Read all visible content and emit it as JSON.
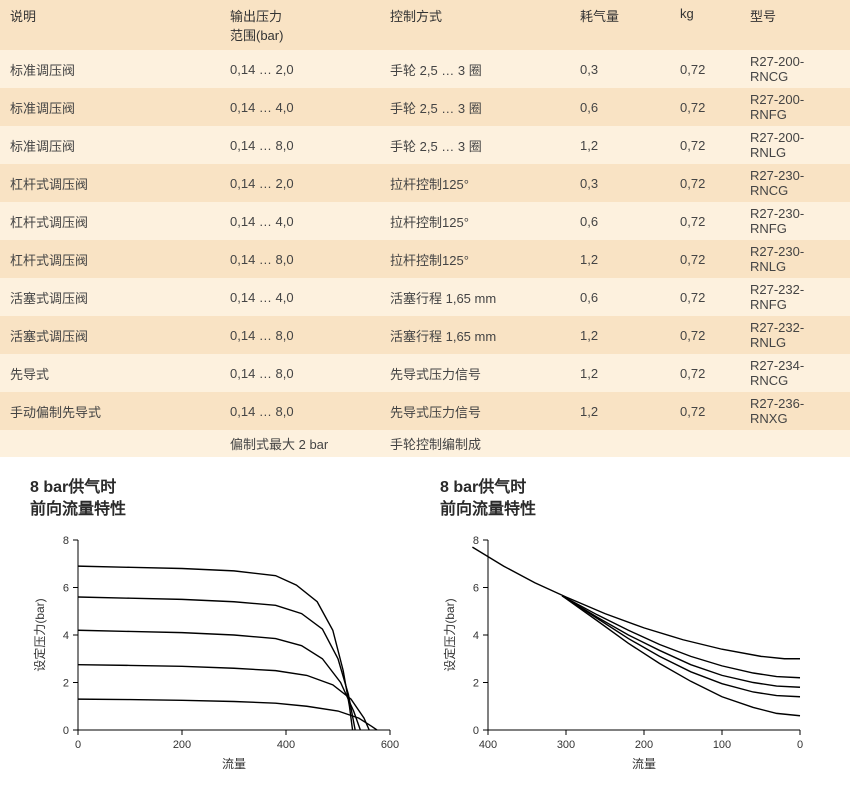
{
  "table": {
    "headers": [
      "说明",
      "输出压力\n范围(bar)",
      "控制方式",
      "耗气量",
      "kg",
      "型号"
    ],
    "rows": [
      [
        "标准调压阀",
        "0,14 … 2,0",
        "手轮 2,5 … 3 圈",
        "0,3",
        "0,72",
        "R27-200-RNCG"
      ],
      [
        "标准调压阀",
        "0,14 … 4,0",
        "手轮 2,5 … 3 圈",
        "0,6",
        "0,72",
        "R27-200-RNFG"
      ],
      [
        "标准调压阀",
        "0,14 … 8,0",
        "手轮 2,5 … 3 圈",
        "1,2",
        "0,72",
        "R27-200-RNLG"
      ],
      [
        "杠杆式调压阀",
        "0,14 … 2,0",
        "拉杆控制125°",
        "0,3",
        "0,72",
        "R27-230-RNCG"
      ],
      [
        "杠杆式调压阀",
        "0,14 … 4,0",
        "拉杆控制125°",
        "0,6",
        "0,72",
        "R27-230-RNFG"
      ],
      [
        "杠杆式调压阀",
        "0,14 … 8,0",
        "拉杆控制125°",
        "1,2",
        "0,72",
        "R27-230-RNLG"
      ],
      [
        "活塞式调压阀",
        "0,14 … 4,0",
        "活塞行程 1,65 mm",
        "0,6",
        "0,72",
        "R27-232-RNFG"
      ],
      [
        "活塞式调压阀",
        "0,14 … 8,0",
        "活塞行程 1,65 mm",
        "1,2",
        "0,72",
        "R27-232-RNLG"
      ],
      [
        "先导式",
        "0,14 … 8,0",
        "先导式压力信号",
        "1,2",
        "0,72",
        "R27-234-RNCG"
      ],
      [
        "手动偏制先导式",
        "0,14 … 8,0",
        "先导式压力信号",
        "1,2",
        "0,72",
        "R27-236-RNXG"
      ],
      [
        "",
        "偏制式最大 2 bar",
        "手轮控制编制成",
        "",
        "",
        ""
      ]
    ]
  },
  "chart_left": {
    "title_line1": "8 bar供气时",
    "title_line2": "前向流量特性",
    "type": "line",
    "xlabel": "流量",
    "ylabel": "设定压力(bar)",
    "xlim": [
      0,
      600
    ],
    "ylim": [
      0,
      8
    ],
    "xticks": [
      0,
      200,
      400,
      600
    ],
    "yticks": [
      0,
      2,
      4,
      6,
      8
    ],
    "axis_color": "#000000",
    "line_color": "#000000",
    "line_width": 1.4,
    "background_color": "#ffffff",
    "tick_fontsize": 11,
    "label_fontsize": 12,
    "series": [
      {
        "points": [
          [
            0,
            6.9
          ],
          [
            100,
            6.85
          ],
          [
            200,
            6.8
          ],
          [
            300,
            6.7
          ],
          [
            380,
            6.5
          ],
          [
            420,
            6.1
          ],
          [
            460,
            5.4
          ],
          [
            490,
            4.2
          ],
          [
            510,
            2.5
          ],
          [
            522,
            1.0
          ],
          [
            528,
            0
          ]
        ]
      },
      {
        "points": [
          [
            0,
            5.6
          ],
          [
            100,
            5.55
          ],
          [
            200,
            5.5
          ],
          [
            300,
            5.4
          ],
          [
            380,
            5.25
          ],
          [
            430,
            4.9
          ],
          [
            470,
            4.25
          ],
          [
            500,
            3.0
          ],
          [
            520,
            1.5
          ],
          [
            533,
            0
          ]
        ]
      },
      {
        "points": [
          [
            0,
            4.2
          ],
          [
            100,
            4.15
          ],
          [
            200,
            4.1
          ],
          [
            300,
            4.0
          ],
          [
            380,
            3.85
          ],
          [
            430,
            3.55
          ],
          [
            470,
            3.0
          ],
          [
            505,
            2.0
          ],
          [
            530,
            0.8
          ],
          [
            543,
            0
          ]
        ]
      },
      {
        "points": [
          [
            0,
            2.75
          ],
          [
            100,
            2.72
          ],
          [
            200,
            2.68
          ],
          [
            300,
            2.6
          ],
          [
            380,
            2.5
          ],
          [
            440,
            2.3
          ],
          [
            490,
            1.9
          ],
          [
            525,
            1.3
          ],
          [
            550,
            0.5
          ],
          [
            560,
            0
          ]
        ]
      },
      {
        "points": [
          [
            0,
            1.3
          ],
          [
            100,
            1.28
          ],
          [
            200,
            1.25
          ],
          [
            300,
            1.2
          ],
          [
            380,
            1.13
          ],
          [
            440,
            1.0
          ],
          [
            500,
            0.8
          ],
          [
            540,
            0.5
          ],
          [
            565,
            0.15
          ],
          [
            575,
            0
          ]
        ]
      }
    ]
  },
  "chart_right": {
    "title_line1": "8 bar供气时",
    "title_line2": "前向流量特性",
    "type": "line",
    "xlabel": "流量",
    "ylabel": "设定压力(bar)",
    "xlim_reversed": true,
    "xlim": [
      400,
      0
    ],
    "ylim": [
      0,
      8
    ],
    "xticks": [
      400,
      300,
      200,
      100,
      0
    ],
    "yticks": [
      0,
      2,
      4,
      6,
      8
    ],
    "axis_color": "#000000",
    "line_color": "#000000",
    "line_width": 1.4,
    "background_color": "#ffffff",
    "tick_fontsize": 11,
    "label_fontsize": 12,
    "series": [
      {
        "points": [
          [
            420,
            7.7
          ],
          [
            380,
            6.9
          ],
          [
            340,
            6.2
          ],
          [
            300,
            5.6
          ],
          [
            250,
            4.9
          ],
          [
            200,
            4.3
          ],
          [
            150,
            3.8
          ],
          [
            100,
            3.4
          ],
          [
            50,
            3.1
          ],
          [
            20,
            3.0
          ],
          [
            0,
            3.0
          ]
        ]
      },
      {
        "points": [
          [
            305,
            5.65
          ],
          [
            260,
            4.85
          ],
          [
            220,
            4.2
          ],
          [
            180,
            3.6
          ],
          [
            140,
            3.1
          ],
          [
            100,
            2.7
          ],
          [
            60,
            2.4
          ],
          [
            30,
            2.25
          ],
          [
            0,
            2.2
          ]
        ]
      },
      {
        "points": [
          [
            305,
            5.65
          ],
          [
            260,
            4.75
          ],
          [
            220,
            4.0
          ],
          [
            180,
            3.35
          ],
          [
            140,
            2.75
          ],
          [
            100,
            2.3
          ],
          [
            60,
            2.0
          ],
          [
            30,
            1.85
          ],
          [
            0,
            1.8
          ]
        ]
      },
      {
        "points": [
          [
            305,
            5.65
          ],
          [
            260,
            4.7
          ],
          [
            220,
            3.85
          ],
          [
            180,
            3.1
          ],
          [
            140,
            2.45
          ],
          [
            100,
            1.95
          ],
          [
            60,
            1.6
          ],
          [
            30,
            1.45
          ],
          [
            0,
            1.4
          ]
        ]
      },
      {
        "points": [
          [
            305,
            5.65
          ],
          [
            260,
            4.6
          ],
          [
            220,
            3.65
          ],
          [
            180,
            2.8
          ],
          [
            140,
            2.05
          ],
          [
            100,
            1.4
          ],
          [
            60,
            0.95
          ],
          [
            30,
            0.7
          ],
          [
            0,
            0.6
          ]
        ]
      }
    ]
  }
}
